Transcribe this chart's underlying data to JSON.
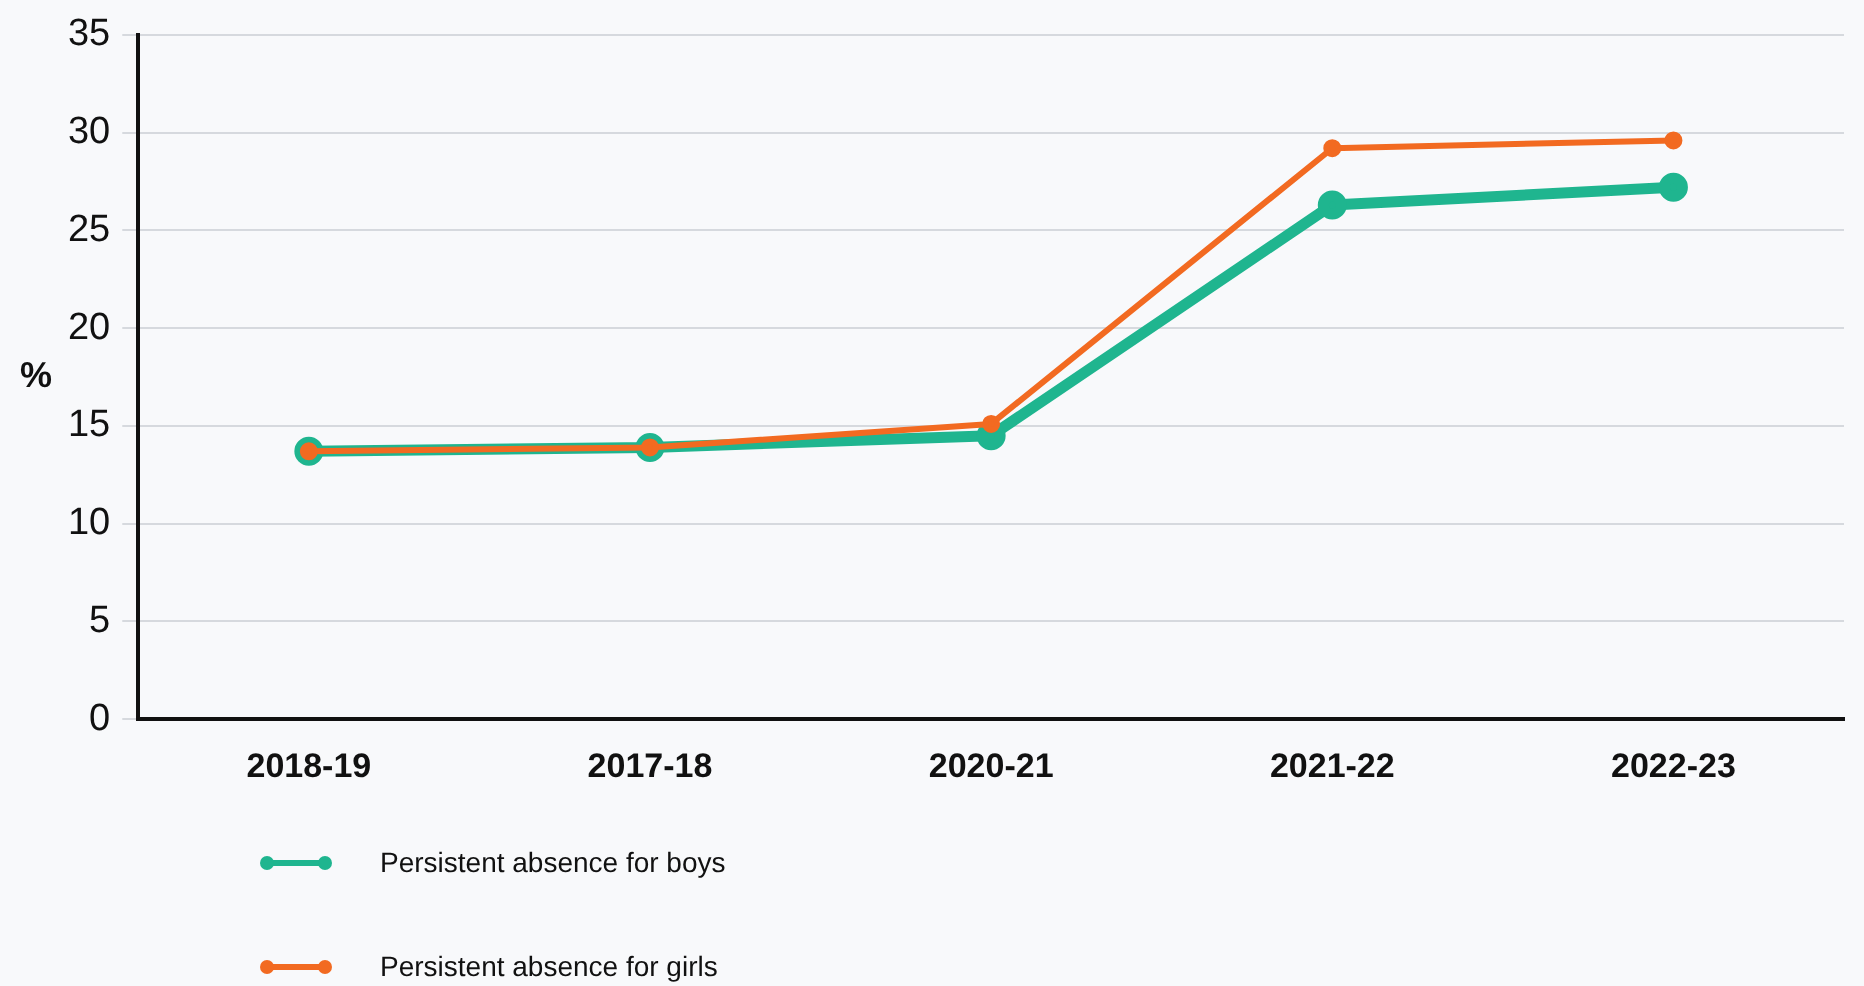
{
  "chart_data": {
    "type": "line",
    "ylabel": "%",
    "categories": [
      "2018-19",
      "2017-18",
      "2020-21",
      "2021-22",
      "2022-23"
    ],
    "series": [
      {
        "name": "Persistent absence for boys",
        "color": "#1fb58f",
        "values": [
          13.7,
          13.9,
          14.5,
          26.3,
          27.2
        ]
      },
      {
        "name": "Persistent absence for girls",
        "color": "#f26a21",
        "values": [
          13.7,
          13.9,
          15.1,
          29.2,
          29.6
        ]
      }
    ],
    "ylim": [
      0,
      35
    ],
    "yticks": [
      0,
      5,
      10,
      15,
      20,
      25,
      30,
      35
    ],
    "grid": "y",
    "legend": "bottom left",
    "marker": "circle",
    "line_style": "solid"
  }
}
